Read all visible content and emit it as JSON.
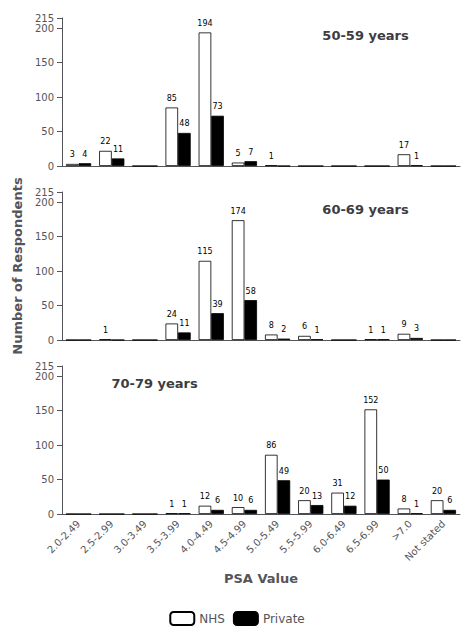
{
  "chart_data": [
    {
      "type": "bar",
      "title": "50-59 years",
      "categories": [
        "2.0-2.49",
        "2.5-2.99",
        "3.0-3.49",
        "3.5-3.99",
        "4.0-4.49",
        "4.5-4.99",
        "5.0-5.49",
        "5.5-5.99",
        "6.0-6.49",
        "6.5-6.99",
        ">7.0",
        "Not stated"
      ],
      "series": [
        {
          "name": "NHS",
          "color": "white",
          "values": [
            3,
            22,
            0,
            85,
            194,
            5,
            1,
            0,
            0,
            0,
            17,
            0
          ]
        },
        {
          "name": "Private",
          "color": "black",
          "values": [
            4,
            11,
            0,
            48,
            73,
            7,
            0,
            0,
            0,
            0,
            1,
            0
          ]
        }
      ],
      "ylim": [
        0,
        215
      ],
      "yticks": [
        0,
        50,
        100,
        150,
        200
      ],
      "grid": false,
      "data_labels": true,
      "tick_labels": "y"
    },
    {
      "type": "bar",
      "title": "60-69 years",
      "ylabel": "Number of Respondents",
      "categories": [
        "2.0-2.49",
        "2.5-2.99",
        "3.0-3.49",
        "3.5-3.99",
        "4.0-4.49",
        "4.5-4.99",
        "5.0-5.49",
        "5.5-5.99",
        "6.0-6.49",
        "6.5-6.99",
        ">7.0",
        "Not stated"
      ],
      "series": [
        {
          "name": "NHS",
          "color": "white",
          "values": [
            0,
            1,
            0,
            24,
            115,
            174,
            8,
            6,
            0,
            1,
            9,
            0
          ]
        },
        {
          "name": "Private",
          "color": "black",
          "values": [
            0,
            0,
            0,
            11,
            39,
            58,
            2,
            1,
            0,
            1,
            3,
            0
          ]
        }
      ],
      "ylim": [
        0,
        215
      ],
      "yticks": [
        0,
        50,
        100,
        150,
        200
      ],
      "grid": false,
      "data_labels": true,
      "tick_labels": "y"
    },
    {
      "type": "bar",
      "title": "70-79 years",
      "xlabel": "PSA Value",
      "categories": [
        "2.0-2.49",
        "2.5-2.99",
        "3.0-3.49",
        "3.5-3.99",
        "4.0-4.49",
        "4.5-4.99",
        "5.0-5.49",
        "5.5-5.99",
        "6.0-6.49",
        "6.5-6.99",
        ">7.0",
        "Not stated"
      ],
      "series": [
        {
          "name": "NHS",
          "color": "white",
          "values": [
            0,
            0,
            0,
            1,
            12,
            10,
            86,
            20,
            31,
            152,
            8,
            20
          ]
        },
        {
          "name": "Private",
          "color": "black",
          "values": [
            0,
            0,
            0,
            1,
            6,
            6,
            49,
            13,
            12,
            50,
            1,
            6
          ]
        }
      ],
      "ylim": [
        0,
        215
      ],
      "yticks": [
        0,
        50,
        100,
        150,
        200
      ],
      "grid": false,
      "data_labels": true,
      "legend": "bottom"
    }
  ]
}
